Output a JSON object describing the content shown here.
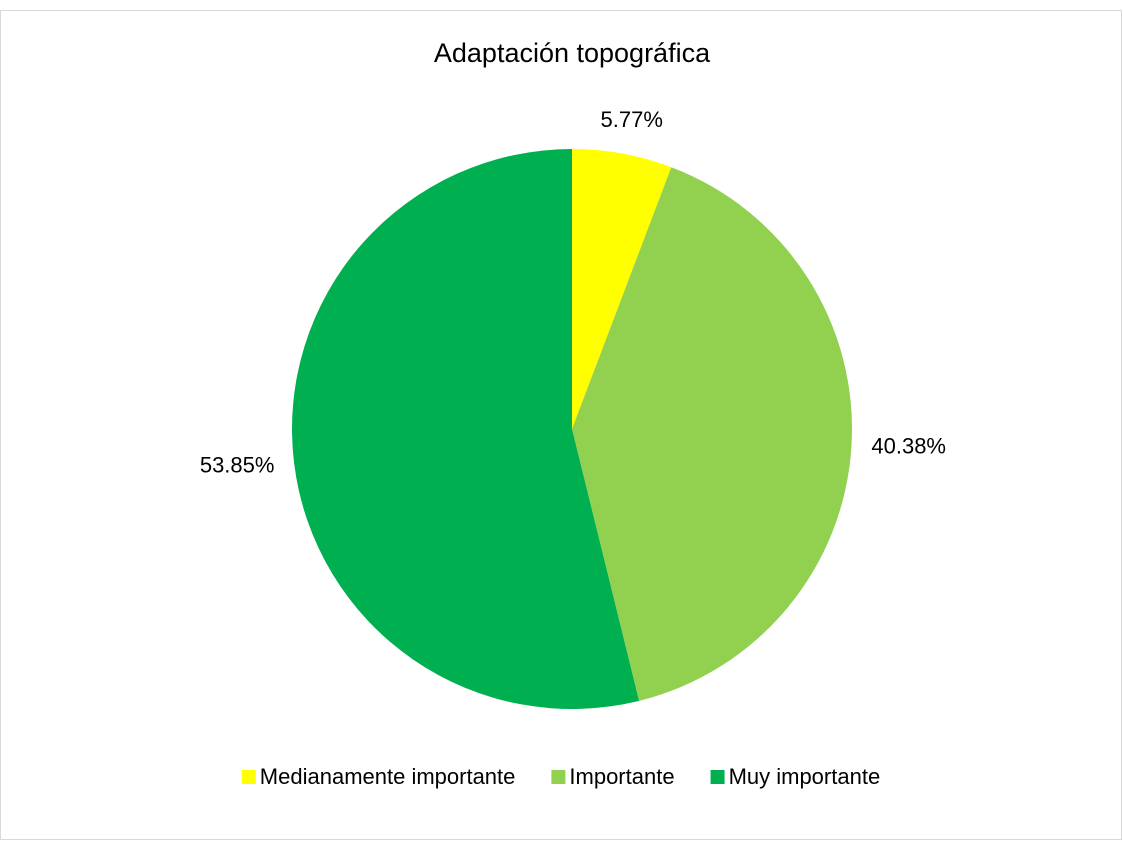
{
  "chart_data": {
    "type": "pie",
    "title": "Adaptación topográfica",
    "categories": [
      "Medianamente importante",
      "Importante",
      "Muy importante"
    ],
    "values": [
      5.77,
      40.38,
      53.85
    ],
    "value_labels": [
      "5.77%",
      "40.38%",
      "53.85%"
    ],
    "colors": [
      "#ffff00",
      "#92d050",
      "#00b050"
    ],
    "legend": "bottom"
  }
}
